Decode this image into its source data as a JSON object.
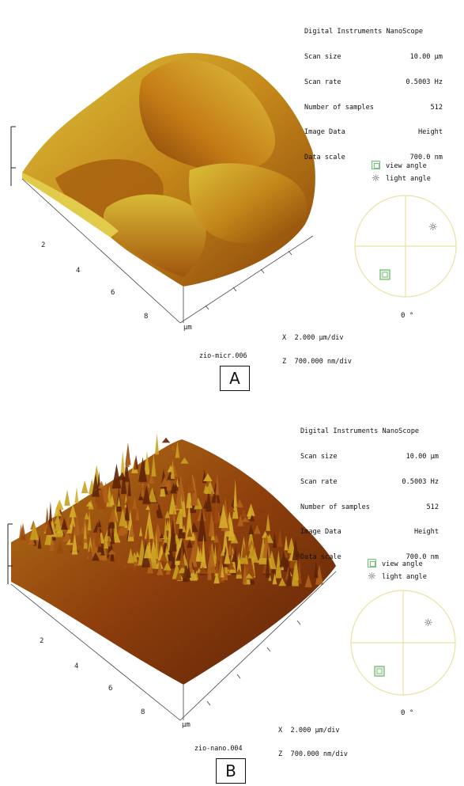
{
  "panels": [
    {
      "meta_title": "Digital Instruments NanoScope",
      "meta": [
        {
          "label": "Scan size",
          "value": "10.00 µm"
        },
        {
          "label": "Scan rate",
          "value": "0.5003 Hz"
        },
        {
          "label": "Number of samples",
          "value": "512"
        },
        {
          "label": "Image Data",
          "value": "Height"
        },
        {
          "label": "Data scale",
          "value": "700.0 nm"
        }
      ],
      "ticks": [
        "2",
        "4",
        "6",
        "8"
      ],
      "unit": "µm",
      "x_scale": "X  2.000 µm/div",
      "z_scale": "Z  700.000 nm/div",
      "legend_view": "view angle",
      "legend_light": "light angle",
      "angle": "0 °",
      "filename": "zio-micr.006",
      "label": "A",
      "colors": {
        "light": "#d8bf2c",
        "mid": "#b86d10",
        "dark": "#7a3a06"
      }
    },
    {
      "meta_title": "Digital Instruments NanoScope",
      "meta": [
        {
          "label": "Scan size",
          "value": "10.00 µm"
        },
        {
          "label": "Scan rate",
          "value": "0.5003 Hz"
        },
        {
          "label": "Number of samples",
          "value": "512"
        },
        {
          "label": "Image Data",
          "value": "Height"
        },
        {
          "label": "Data scale",
          "value": "700.0 nm"
        }
      ],
      "ticks": [
        "2",
        "4",
        "6",
        "8"
      ],
      "unit": "µm",
      "x_scale": "X  2.000 µm/div",
      "z_scale": "Z  700.000 nm/div",
      "legend_view": "view angle",
      "legend_light": "light angle",
      "angle": "0 °",
      "filename": "zio-nano.004",
      "label": "B",
      "colors": {
        "light": "#c9a020",
        "mid": "#9a4a0e",
        "dark": "#5e2308"
      }
    }
  ]
}
